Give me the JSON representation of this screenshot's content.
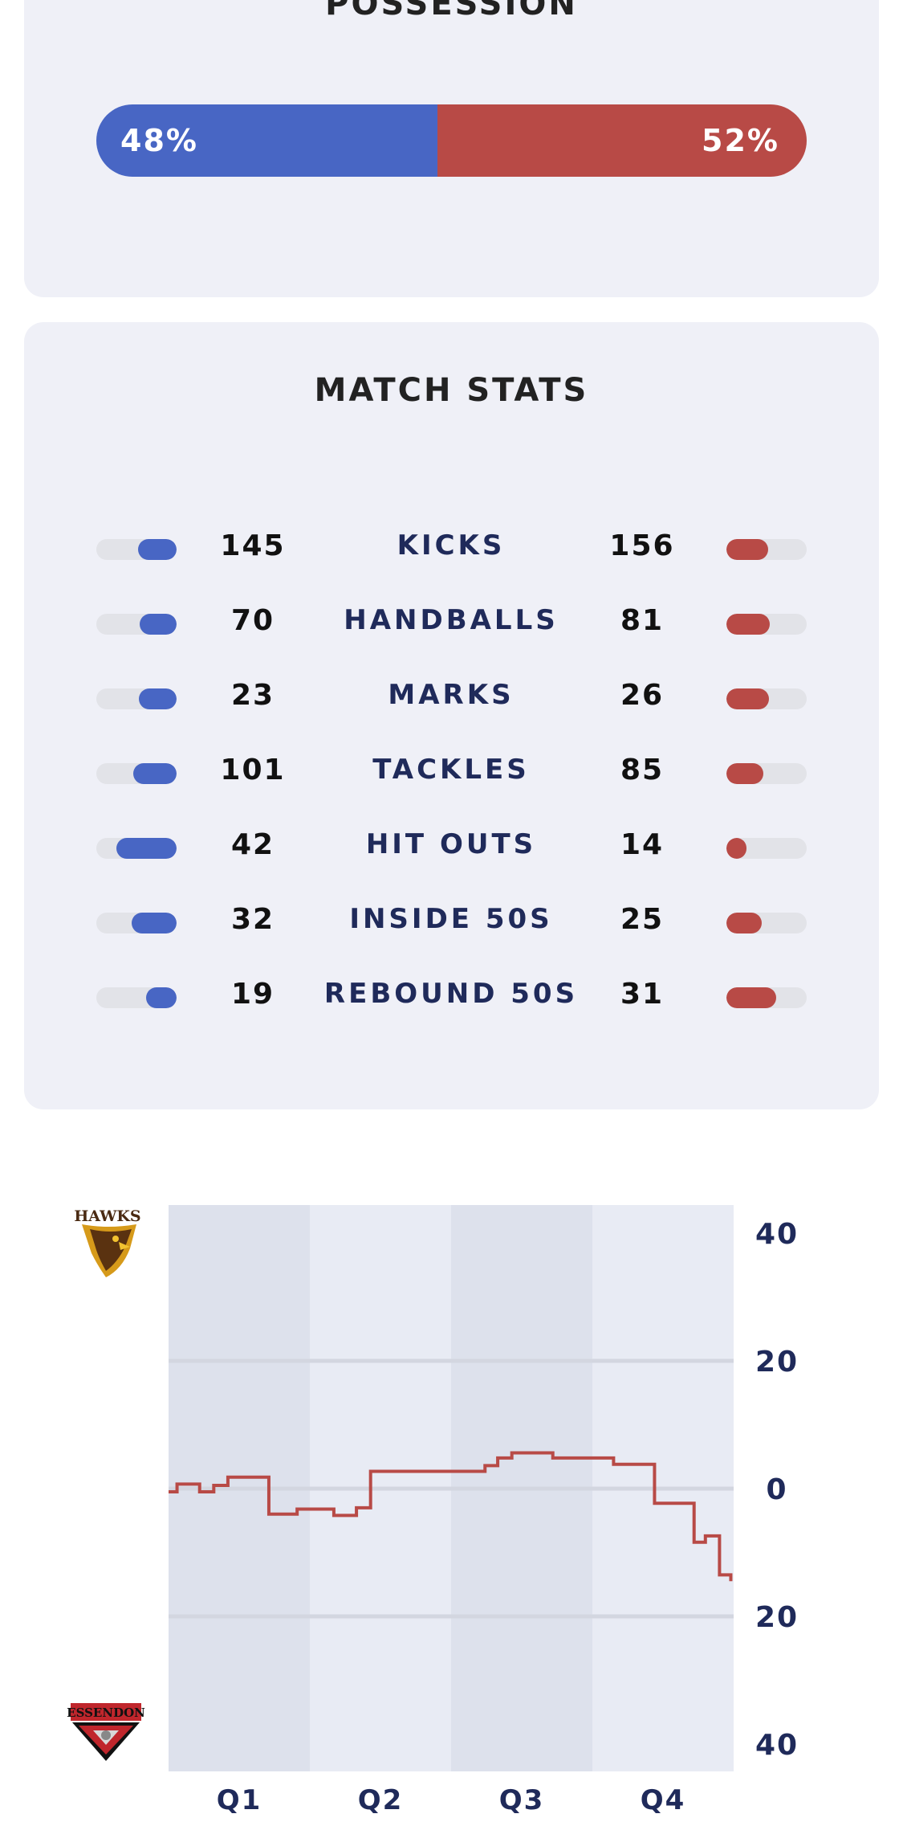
{
  "possession": {
    "title": "POSSESSION",
    "home_pct": 48,
    "away_pct": 52,
    "home_label": "48%",
    "away_label": "52%"
  },
  "match_stats": {
    "title": "MATCH STATS",
    "rows": [
      {
        "label": "KICKS",
        "home": "145",
        "away": "156",
        "home_share": 0.48,
        "away_share": 0.52
      },
      {
        "label": "HANDBALLS",
        "home": "70",
        "away": "81",
        "home_share": 0.46,
        "away_share": 0.54
      },
      {
        "label": "MARKS",
        "home": "23",
        "away": "26",
        "home_share": 0.47,
        "away_share": 0.53
      },
      {
        "label": "TACKLES",
        "home": "101",
        "away": "85",
        "home_share": 0.54,
        "away_share": 0.46
      },
      {
        "label": "HIT OUTS",
        "home": "42",
        "away": "14",
        "home_share": 0.75,
        "away_share": 0.25
      },
      {
        "label": "INSIDE 50S",
        "home": "32",
        "away": "25",
        "home_share": 0.56,
        "away_share": 0.44
      },
      {
        "label": "REBOUND 50S",
        "home": "19",
        "away": "31",
        "home_share": 0.38,
        "away_share": 0.62
      }
    ]
  },
  "colors": {
    "home": "#4866c4",
    "away": "#b84a46",
    "worm_line": "#b84a46",
    "band_dark": "#dde1ec",
    "band_light": "#e8ebf4",
    "grid": "#d3d6e0"
  },
  "teams": {
    "home_logo_text": "HAWKS",
    "away_logo_text": "ESSENDON"
  },
  "chart_data": {
    "type": "line",
    "title": "",
    "xlabel": "",
    "ylabel": "",
    "quarters": [
      "Q1",
      "Q2",
      "Q3",
      "Q4"
    ],
    "y_ticks": [
      {
        "value": 40,
        "label": "40"
      },
      {
        "value": 20,
        "label": "20"
      },
      {
        "value": 0,
        "label": "0"
      },
      {
        "value": -20,
        "label": "20"
      },
      {
        "value": -40,
        "label": "40"
      }
    ],
    "ylim": [
      -40,
      40
    ],
    "xlim": [
      0,
      4
    ],
    "series": [
      {
        "points": [
          [
            0.0,
            -0.5
          ],
          [
            0.06,
            0.7
          ],
          [
            0.22,
            -0.5
          ],
          [
            0.32,
            0.5
          ],
          [
            0.42,
            1.8
          ],
          [
            0.71,
            -4.0
          ],
          [
            0.91,
            -3.2
          ],
          [
            1.17,
            -4.2
          ],
          [
            1.33,
            -3.0
          ],
          [
            1.43,
            2.7
          ],
          [
            2.24,
            3.6
          ],
          [
            2.33,
            4.8
          ],
          [
            2.43,
            5.6
          ],
          [
            2.72,
            4.8
          ],
          [
            3.15,
            3.8
          ],
          [
            3.44,
            -2.3
          ],
          [
            3.72,
            -8.4
          ],
          [
            3.8,
            -7.4
          ],
          [
            3.9,
            -13.5
          ],
          [
            3.98,
            -14.5
          ]
        ]
      }
    ]
  }
}
